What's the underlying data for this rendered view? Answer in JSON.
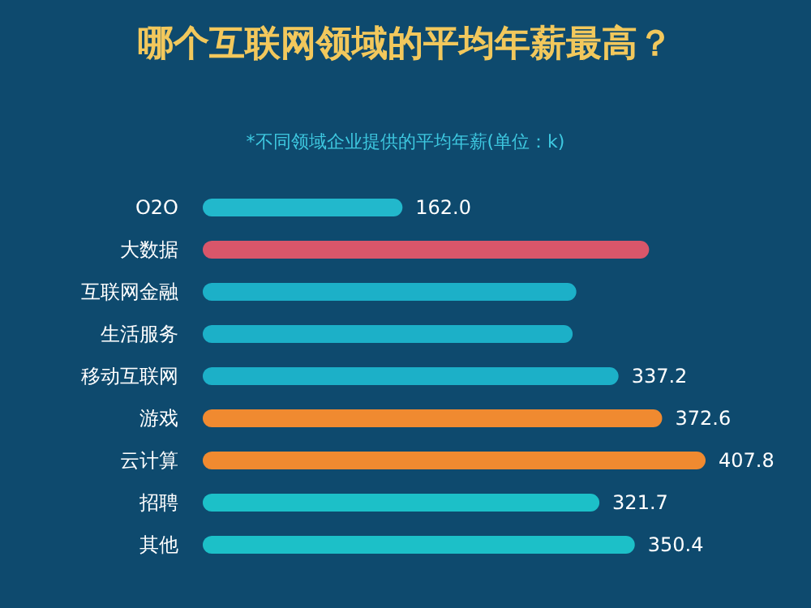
{
  "chart_data": {
    "type": "bar",
    "orientation": "horizontal",
    "title": "哪个互联网领域的平均年薪最高？",
    "subtitle": "*不同领域企业提供的平均年薪(单位：k)",
    "categories": [
      "O2O",
      "大数据",
      "互联网金融",
      "生活服务",
      "移动互联网",
      "游戏",
      "云计算",
      "招聘",
      "其他"
    ],
    "values": [
      162.0,
      362,
      303,
      300,
      337.2,
      372.6,
      407.8,
      321.7,
      350.4
    ],
    "value_labels": [
      "162.0",
      null,
      null,
      null,
      "337.2",
      "372.6",
      "407.8",
      "321.7",
      "350.4"
    ],
    "colors": [
      "#22b8cc",
      "#d9566a",
      "#1cb0c8",
      "#1cb0c8",
      "#1cb0c8",
      "#f08a30",
      "#f08a30",
      "#1cc0c8",
      "#1cc0c8"
    ]
  }
}
